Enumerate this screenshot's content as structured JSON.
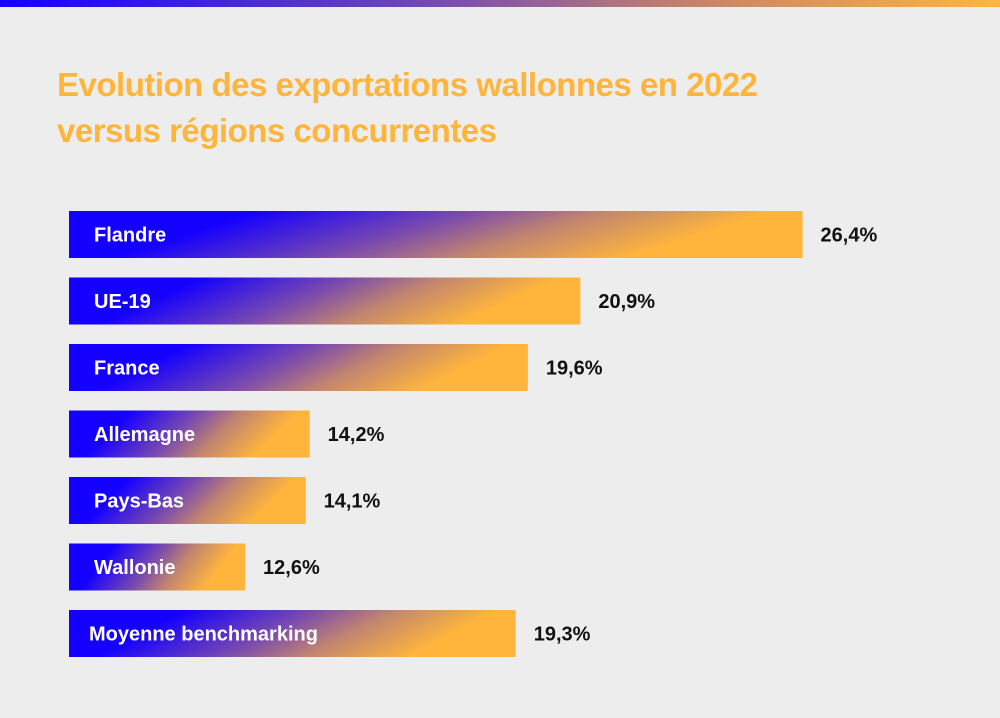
{
  "colors": {
    "background": "#ededed",
    "gradient_start": "#1400ff",
    "gradient_end": "#ffb53c",
    "title": "#ffb53c"
  },
  "chart_data": {
    "type": "bar",
    "orientation": "horizontal",
    "title": "Evolution des exportations wallonnes en 2022 versus régions concurrentes",
    "xlabel": "",
    "ylabel": "",
    "grid": false,
    "legend": null,
    "categories": [
      "Flandre",
      "UE-19",
      "France",
      "Allemagne",
      "Pays-Bas",
      "Wallonie",
      "Moyenne benchmarking"
    ],
    "values": [
      26.4,
      20.9,
      19.6,
      14.2,
      14.1,
      12.6,
      19.3
    ],
    "value_labels": [
      "26,4%",
      "20,9%",
      "19,6%",
      "14,2%",
      "14,1%",
      "12,6%",
      "19,3%"
    ],
    "unit": "%"
  }
}
